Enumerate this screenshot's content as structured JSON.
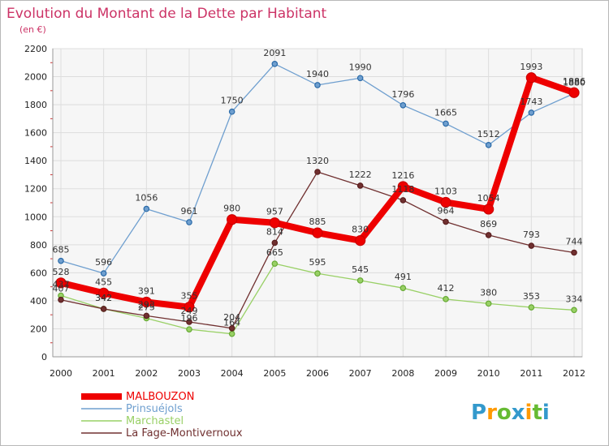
{
  "chart_data": {
    "type": "line",
    "title": "Evolution du Montant de la Dette par Habitant",
    "subtitle": "(en €)",
    "xlabel": "",
    "ylabel": "",
    "x": [
      "2000",
      "2001",
      "2002",
      "2003",
      "2004",
      "2005",
      "2006",
      "2007",
      "2008",
      "2009",
      "2010",
      "2011",
      "2012"
    ],
    "ylim": [
      0,
      2200
    ],
    "yticks": [
      0,
      200,
      400,
      600,
      800,
      1000,
      1200,
      1400,
      1600,
      1800,
      2000,
      2200
    ],
    "grid": true,
    "legend_position": "bottom-left",
    "series": [
      {
        "name": "MALBOUZON",
        "color": "#ee0000",
        "values": [
          528,
          455,
          391,
          355,
          980,
          957,
          885,
          830,
          1216,
          1103,
          1054,
          1993,
          1886
        ]
      },
      {
        "name": "Prinsuéjols",
        "color": "#6f9fcf",
        "values": [
          685,
          596,
          1056,
          961,
          1750,
          2091,
          1940,
          1990,
          1796,
          1665,
          1512,
          1743,
          1880
        ]
      },
      {
        "name": "Marchastel",
        "color": "#99d066",
        "values": [
          437,
          342,
          275,
          196,
          164,
          665,
          595,
          545,
          491,
          412,
          380,
          353,
          334
        ]
      },
      {
        "name": "La Fage-Montivernoux",
        "color": "#703030",
        "values": [
          407,
          342,
          293,
          249,
          204,
          814,
          1320,
          1222,
          1118,
          964,
          869,
          793,
          744
        ]
      }
    ]
  },
  "brand": {
    "name": "Proxiti"
  }
}
